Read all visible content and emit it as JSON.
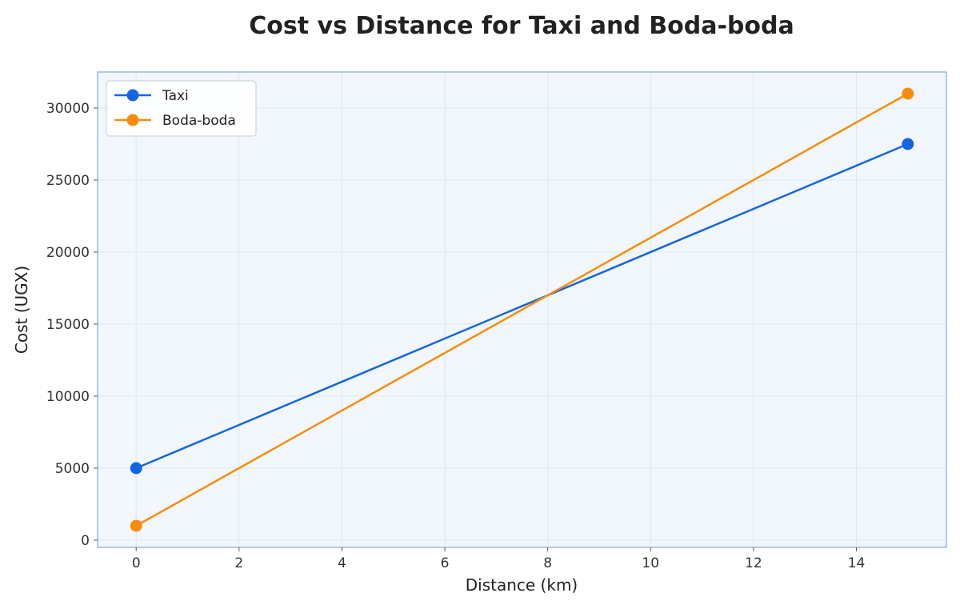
{
  "chart_data": {
    "type": "line",
    "title": "Cost vs Distance for Taxi and Boda-boda",
    "xlabel": "Distance (km)",
    "ylabel": "Cost (UGX)",
    "xlim": [
      -0.75,
      15.75
    ],
    "ylim": [
      -500,
      32500
    ],
    "xticks": [
      0,
      2,
      4,
      6,
      8,
      10,
      12,
      14
    ],
    "yticks": [
      0,
      5000,
      10000,
      15000,
      20000,
      25000,
      30000
    ],
    "grid": true,
    "legend": "top-left",
    "series": [
      {
        "name": "Taxi",
        "color": "#1565e0",
        "x": [
          0,
          15
        ],
        "y": [
          5000,
          27500
        ]
      },
      {
        "name": "Boda-boda",
        "color": "#f98c0b",
        "x": [
          0,
          15
        ],
        "y": [
          1000,
          31000
        ]
      }
    ]
  }
}
